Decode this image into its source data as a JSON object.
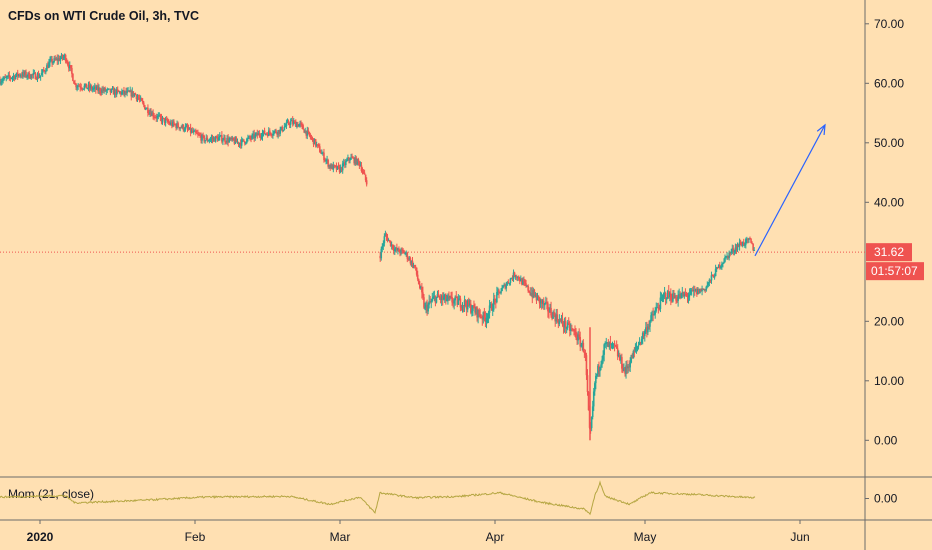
{
  "chart_data": {
    "type": "line",
    "title": "CFDs on WTI Crude Oil, 3h, TVC",
    "price_axis": {
      "ylim": [
        -6,
        74
      ],
      "ticks": [
        {
          "value": 70,
          "label": "70.00"
        },
        {
          "value": 60,
          "label": "60.00"
        },
        {
          "value": 50,
          "label": "50.00"
        },
        {
          "value": 40,
          "label": "40.00"
        },
        {
          "value": 20,
          "label": "20.00"
        },
        {
          "value": 10,
          "label": "10.00"
        },
        {
          "value": 0,
          "label": "0.00"
        }
      ]
    },
    "time_axis": {
      "xlim": [
        "2019-12-24",
        "2020-06-14"
      ],
      "ticks": [
        {
          "date": "2020-01-01",
          "label": "2020"
        },
        {
          "date": "2020-02-01",
          "label": "Feb"
        },
        {
          "date": "2020-03-01",
          "label": "Mar"
        },
        {
          "date": "2020-04-01",
          "label": "Apr"
        },
        {
          "date": "2020-05-01",
          "label": "May"
        },
        {
          "date": "2020-06-01",
          "label": "Jun"
        }
      ]
    },
    "series": [
      {
        "values": [
          [
            "2019-12-24",
            60.5
          ],
          [
            "2019-12-28",
            61.5
          ],
          [
            "2020-01-01",
            61.2
          ],
          [
            "2020-01-03",
            63.5
          ],
          [
            "2020-01-06",
            64.5
          ],
          [
            "2020-01-07",
            62.5
          ],
          [
            "2020-01-08",
            59.8
          ],
          [
            "2020-01-12",
            59.0
          ],
          [
            "2020-01-16",
            58.5
          ],
          [
            "2020-01-20",
            58.2
          ],
          [
            "2020-01-22",
            56.0
          ],
          [
            "2020-01-24",
            54.5
          ],
          [
            "2020-01-27",
            53.2
          ],
          [
            "2020-01-30",
            52.5
          ],
          [
            "2020-02-03",
            50.5
          ],
          [
            "2020-02-06",
            50.8
          ],
          [
            "2020-02-10",
            50.0
          ],
          [
            "2020-02-14",
            51.5
          ],
          [
            "2020-02-18",
            52.0
          ],
          [
            "2020-02-20",
            53.5
          ],
          [
            "2020-02-22",
            53.0
          ],
          [
            "2020-02-25",
            50.0
          ],
          [
            "2020-02-28",
            46.0
          ],
          [
            "2020-03-01",
            45.5
          ],
          [
            "2020-03-03",
            47.5
          ],
          [
            "2020-03-05",
            46.5
          ],
          [
            "2020-03-07",
            41.5
          ],
          [
            "2020-03-09",
            31.0
          ],
          [
            "2020-03-10",
            34.5
          ],
          [
            "2020-03-12",
            32.0
          ],
          [
            "2020-03-14",
            31.5
          ],
          [
            "2020-03-16",
            29.0
          ],
          [
            "2020-03-18",
            22.0
          ],
          [
            "2020-03-20",
            24.0
          ],
          [
            "2020-03-23",
            23.5
          ],
          [
            "2020-03-26",
            23.0
          ],
          [
            "2020-03-30",
            20.5
          ],
          [
            "2020-04-02",
            25.0
          ],
          [
            "2020-04-05",
            28.0
          ],
          [
            "2020-04-08",
            25.0
          ],
          [
            "2020-04-11",
            22.5
          ],
          [
            "2020-04-14",
            20.0
          ],
          [
            "2020-04-17",
            18.0
          ],
          [
            "2020-04-19",
            15.0
          ],
          [
            "2020-04-20",
            0.0
          ],
          [
            "2020-04-21",
            10.0
          ],
          [
            "2020-04-23",
            16.0
          ],
          [
            "2020-04-25",
            15.5
          ],
          [
            "2020-04-27",
            11.5
          ],
          [
            "2020-04-29",
            15.0
          ],
          [
            "2020-05-02",
            20.0
          ],
          [
            "2020-05-05",
            24.5
          ],
          [
            "2020-05-07",
            24.0
          ],
          [
            "2020-05-10",
            24.5
          ],
          [
            "2020-05-13",
            25.5
          ],
          [
            "2020-05-16",
            29.5
          ],
          [
            "2020-05-18",
            31.5
          ],
          [
            "2020-05-20",
            33.0
          ],
          [
            "2020-05-22",
            33.5
          ],
          [
            "2020-05-23",
            31.6
          ]
        ]
      }
    ],
    "last_price": {
      "value": 31.62,
      "label": "31.62",
      "countdown": "01:57:07",
      "color": "#EF5350"
    },
    "arrow_annotation": {
      "from": [
        "2020-05-23",
        31.0
      ],
      "to": [
        "2020-06-06",
        53.0
      ],
      "color": "#2962FF"
    },
    "indicator": {
      "label": "Mom (21, close)",
      "ylim": [
        -3,
        3
      ],
      "ticks": [
        {
          "value": 0,
          "label": "0.00"
        }
      ],
      "color": "#B5A642",
      "values": [
        [
          "2019-12-24",
          0.2
        ],
        [
          "2020-01-06",
          0.4
        ],
        [
          "2020-01-08",
          -0.6
        ],
        [
          "2020-01-20",
          -0.3
        ],
        [
          "2020-02-03",
          0.2
        ],
        [
          "2020-02-20",
          0.3
        ],
        [
          "2020-02-28",
          -0.8
        ],
        [
          "2020-03-05",
          0.2
        ],
        [
          "2020-03-08",
          -2.0
        ],
        [
          "2020-03-09",
          0.8
        ],
        [
          "2020-03-16",
          0.1
        ],
        [
          "2020-03-25",
          0.3
        ],
        [
          "2020-04-02",
          0.8
        ],
        [
          "2020-04-10",
          -0.5
        ],
        [
          "2020-04-19",
          -1.5
        ],
        [
          "2020-04-20",
          -2.2
        ],
        [
          "2020-04-21",
          0.5
        ],
        [
          "2020-04-22",
          2.2
        ],
        [
          "2020-04-23",
          0.3
        ],
        [
          "2020-04-28",
          -0.8
        ],
        [
          "2020-05-02",
          0.8
        ],
        [
          "2020-05-10",
          0.6
        ],
        [
          "2020-05-15",
          0.4
        ],
        [
          "2020-05-23",
          0.1
        ]
      ]
    },
    "colors": {
      "background": "#FFE0B2",
      "up": "#26A69A",
      "down": "#EF5350",
      "text": "#131722",
      "grid": "#6B6B6B"
    }
  }
}
